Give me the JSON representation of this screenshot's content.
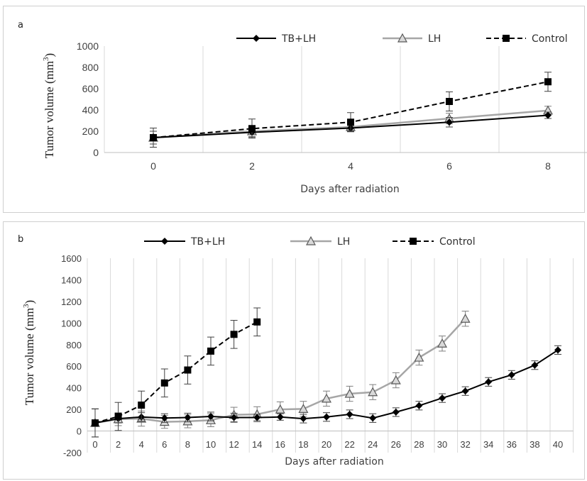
{
  "chart_data": [
    {
      "type": "line",
      "panel_label": "a",
      "title": "",
      "xlabel": "Days after radiation",
      "ylabel": "Tumor volume (mm³)",
      "ylabel_main": "Tumor volume (mm",
      "ylabel_sup": "3",
      "ylabel_close": ")",
      "ylim": [
        0,
        1000
      ],
      "yticks": [
        0,
        200,
        400,
        600,
        800,
        1000
      ],
      "x": [
        0,
        2,
        4,
        6,
        8
      ],
      "xticks": [
        "0",
        "2",
        "4",
        "6",
        "8"
      ],
      "grid": "vertical",
      "legend_position": "top",
      "series": [
        {
          "name": "TB+LH",
          "color": "#000000",
          "dash": "solid",
          "marker": "diamond",
          "values": [
            140,
            190,
            230,
            285,
            350
          ],
          "errors": [
            60,
            45,
            30,
            45,
            30
          ]
        },
        {
          "name": "LH",
          "color": "#a6a6a6",
          "dash": "solid",
          "marker": "triangle",
          "values": [
            140,
            200,
            240,
            320,
            395
          ],
          "errors": [
            60,
            50,
            30,
            50,
            40
          ]
        },
        {
          "name": "Control",
          "color": "#000000",
          "dash": "dashed",
          "marker": "square",
          "values": [
            140,
            225,
            285,
            480,
            665
          ],
          "errors": [
            90,
            90,
            90,
            90,
            90
          ]
        }
      ]
    },
    {
      "type": "line",
      "panel_label": "b",
      "title": "",
      "xlabel": "Days after radiation",
      "ylabel": "Tumor volume (mm³)",
      "ylabel_main": "Tumor volume (mm",
      "ylabel_sup": "3",
      "ylabel_close": ")",
      "ylim": [
        -200,
        1600
      ],
      "yticks": [
        -200,
        0,
        200,
        400,
        600,
        800,
        1000,
        1200,
        1400,
        1600
      ],
      "xticks": [
        "0",
        "2",
        "4",
        "6",
        "8",
        "10",
        "12",
        "14",
        "16",
        "18",
        "20",
        "22",
        "24",
        "26",
        "28",
        "30",
        "32",
        "34",
        "36",
        "38",
        "40"
      ],
      "grid": "vertical",
      "legend_position": "top",
      "series": [
        {
          "name": "TB+LH",
          "color": "#000000",
          "dash": "solid",
          "marker": "diamond",
          "x": [
            0,
            2,
            4,
            6,
            8,
            10,
            12,
            14,
            16,
            18,
            20,
            22,
            24,
            26,
            28,
            30,
            32,
            34,
            36,
            38,
            40
          ],
          "values": [
            75,
            115,
            130,
            120,
            125,
            135,
            125,
            125,
            130,
            115,
            130,
            155,
            120,
            175,
            235,
            305,
            370,
            455,
            520,
            610,
            750
          ],
          "errors": [
            130,
            40,
            40,
            40,
            40,
            40,
            40,
            30,
            30,
            40,
            40,
            40,
            40,
            40,
            40,
            40,
            40,
            40,
            40,
            40,
            40
          ]
        },
        {
          "name": "LH",
          "color": "#a6a6a6",
          "dash": "solid",
          "marker": "triangle",
          "x": [
            0,
            2,
            4,
            6,
            8,
            10,
            12,
            14,
            16,
            18,
            20,
            22,
            24,
            26,
            28,
            30,
            32
          ],
          "values": [
            75,
            110,
            115,
            85,
            90,
            100,
            150,
            155,
            200,
            205,
            300,
            345,
            360,
            470,
            680,
            810,
            1040
          ],
          "errors": [
            130,
            60,
            70,
            60,
            60,
            60,
            70,
            70,
            70,
            70,
            70,
            70,
            70,
            70,
            70,
            70,
            70
          ]
        },
        {
          "name": "Control",
          "color": "#000000",
          "dash": "dashed",
          "marker": "square",
          "x": [
            0,
            2,
            4,
            6,
            8,
            10,
            12,
            14
          ],
          "values": [
            75,
            135,
            240,
            445,
            565,
            740,
            895,
            1010
          ],
          "errors": [
            130,
            130,
            130,
            130,
            130,
            130,
            130,
            130
          ]
        }
      ]
    }
  ]
}
